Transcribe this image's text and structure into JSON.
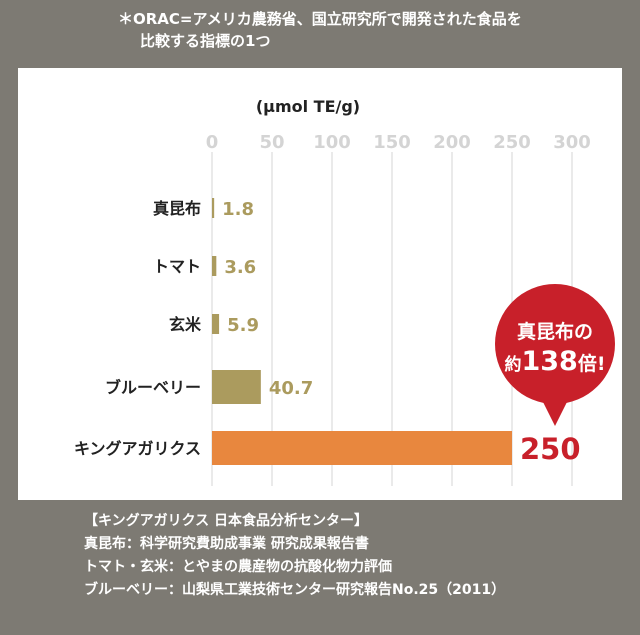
{
  "note": {
    "line1": "＊ORAC=アメリカ農務省、国立研究所で開発された食品を",
    "line2": "比較する指標の1つ"
  },
  "chart_data": {
    "type": "bar",
    "orientation": "horizontal",
    "unit_label": "(μmol TE/g)",
    "xlim": [
      0,
      300
    ],
    "ticks": [
      0,
      50,
      100,
      150,
      200,
      250,
      300
    ],
    "categories": [
      "真昆布",
      "トマト",
      "玄米",
      "ブルーベリー",
      "キングアガリクス"
    ],
    "values": [
      1.8,
      3.6,
      5.9,
      40.7,
      250
    ],
    "value_labels": [
      "1.8",
      "3.6",
      "5.9",
      "40.7",
      "250"
    ],
    "grid": true,
    "colors": {
      "bar": "#ab9b5e",
      "highlight_bar": "#e8873e",
      "value_text": "#ab9b5e",
      "highlight_text": "#c8202a",
      "tick_text": "#d4d4d4",
      "grid": "#e4e4e4"
    },
    "callout": {
      "line1": "真昆布の",
      "line2_prefix": "約",
      "line2_number": "138",
      "line2_suffix": "倍!",
      "color": "#c8202a"
    }
  },
  "sources": [
    "【キングアガリクス 日本食品分析センター】",
    "真昆布：科学研究費助成事業 研究成果報告書",
    "トマト・玄米：とやまの農産物の抗酸化物力評価",
    "ブルーベリー：山梨県工業技術センター研究報告No.25（2011）"
  ]
}
